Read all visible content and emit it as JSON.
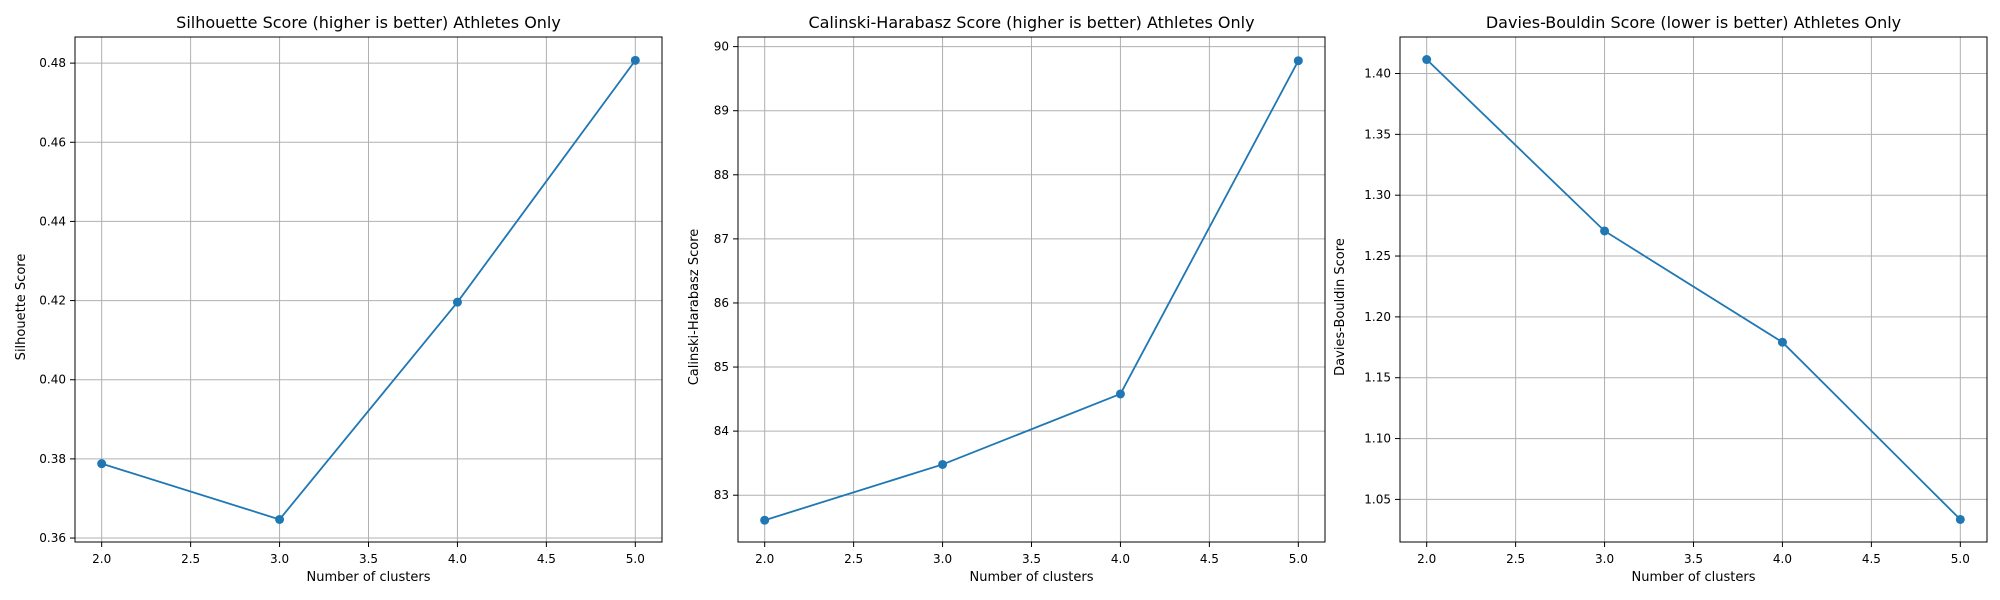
{
  "figure": {
    "background": "#ffffff",
    "series_color": "#1f77b4",
    "grid_color": "#b0b0b0"
  },
  "chart_data": [
    {
      "type": "line",
      "title": "Silhouette Score (higher is better) Athletes Only",
      "xlabel": "Number of clusters",
      "ylabel": "Silhouette Score",
      "x": [
        2,
        3,
        4,
        5
      ],
      "series": [
        {
          "values": [
            0.3788,
            0.3647,
            0.4196,
            0.4807
          ]
        }
      ],
      "xlim": [
        1.85,
        5.15
      ],
      "ylim": [
        0.359,
        0.4866
      ],
      "xticks": [
        2.0,
        2.5,
        3.0,
        3.5,
        4.0,
        4.5,
        5.0
      ],
      "xtick_labels": [
        "2.0",
        "2.5",
        "3.0",
        "3.5",
        "4.0",
        "4.5",
        "5.0"
      ],
      "yticks": [
        0.36,
        0.38,
        0.4,
        0.42,
        0.44,
        0.46,
        0.48
      ],
      "ytick_labels": [
        "0.36",
        "0.38",
        "0.40",
        "0.42",
        "0.44",
        "0.46",
        "0.48"
      ],
      "grid": true,
      "marker": "circle"
    },
    {
      "type": "line",
      "title": "Calinski-Harabasz Score (higher is better) Athletes Only",
      "xlabel": "Number of clusters",
      "ylabel": "Calinski-Harabasz Score",
      "x": [
        2,
        3,
        4,
        5
      ],
      "series": [
        {
          "values": [
            82.61,
            83.48,
            84.58,
            89.78
          ]
        }
      ],
      "xlim": [
        1.85,
        5.15
      ],
      "ylim": [
        82.27,
        90.15
      ],
      "xticks": [
        2.0,
        2.5,
        3.0,
        3.5,
        4.0,
        4.5,
        5.0
      ],
      "xtick_labels": [
        "2.0",
        "2.5",
        "3.0",
        "3.5",
        "4.0",
        "4.5",
        "5.0"
      ],
      "yticks": [
        83,
        84,
        85,
        86,
        87,
        88,
        89,
        90
      ],
      "ytick_labels": [
        "83",
        "84",
        "85",
        "86",
        "87",
        "88",
        "89",
        "90"
      ],
      "grid": true,
      "marker": "circle"
    },
    {
      "type": "line",
      "title": "Davies-Bouldin Score (lower is better) Athletes Only",
      "xlabel": "Number of clusters",
      "ylabel": "Davies-Bouldin Score",
      "x": [
        2,
        3,
        4,
        5
      ],
      "series": [
        {
          "values": [
            1.4115,
            1.2706,
            1.1792,
            1.0335
          ]
        }
      ],
      "xlim": [
        1.85,
        5.15
      ],
      "ylim": [
        1.015,
        1.43
      ],
      "xticks": [
        2.0,
        2.5,
        3.0,
        3.5,
        4.0,
        4.5,
        5.0
      ],
      "xtick_labels": [
        "2.0",
        "2.5",
        "3.0",
        "3.5",
        "4.0",
        "4.5",
        "5.0"
      ],
      "yticks": [
        1.05,
        1.1,
        1.15,
        1.2,
        1.25,
        1.3,
        1.35,
        1.4
      ],
      "ytick_labels": [
        "1.05",
        "1.10",
        "1.15",
        "1.20",
        "1.25",
        "1.30",
        "1.35",
        "1.40"
      ],
      "grid": true,
      "marker": "circle"
    }
  ]
}
